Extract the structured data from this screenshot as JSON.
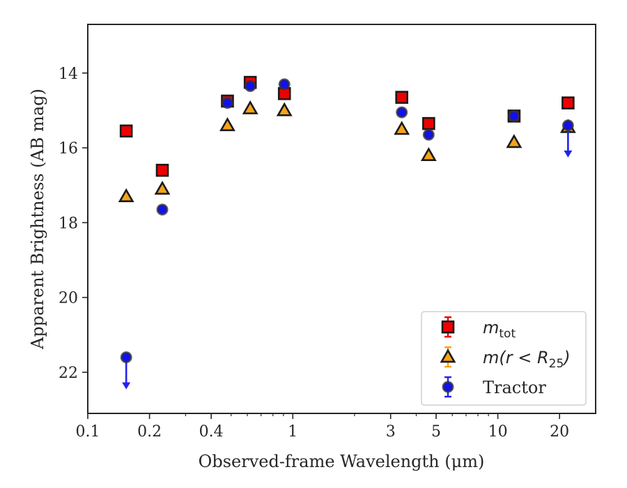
{
  "chart_data": {
    "type": "scatter",
    "xlabel": "Observed-frame Wavelength (μm)",
    "ylabel": "Apparent Brightness (AB mag)",
    "x_scale": "log",
    "xlim": [
      0.1,
      30
    ],
    "ylim": [
      23.1,
      12.7
    ],
    "y_inverted": true,
    "x_ticks": [
      {
        "value": 0.1,
        "label": "0.1"
      },
      {
        "value": 0.2,
        "label": "0.2"
      },
      {
        "value": 0.4,
        "label": "0.4"
      },
      {
        "value": 1,
        "label": "1"
      },
      {
        "value": 3,
        "label": "3"
      },
      {
        "value": 5,
        "label": "5"
      },
      {
        "value": 10,
        "label": "10"
      },
      {
        "value": 20,
        "label": "20"
      }
    ],
    "y_ticks": [
      {
        "value": 14,
        "label": "14"
      },
      {
        "value": 16,
        "label": "16"
      },
      {
        "value": 18,
        "label": "18"
      },
      {
        "value": 20,
        "label": "20"
      },
      {
        "value": 22,
        "label": "22"
      }
    ],
    "grid": false,
    "legend": {
      "placement": "lower-right"
    },
    "series": [
      {
        "name": "m_tot",
        "legend_main": "m",
        "legend_sub": "tot",
        "marker": "square",
        "fill": "#ee0000",
        "errorbar_color": "#ee0000",
        "points": [
          {
            "x": 0.154,
            "y": 15.55
          },
          {
            "x": 0.231,
            "y": 16.6
          },
          {
            "x": 0.48,
            "y": 14.75
          },
          {
            "x": 0.62,
            "y": 14.25
          },
          {
            "x": 0.91,
            "y": 14.55
          },
          {
            "x": 3.4,
            "y": 14.65
          },
          {
            "x": 4.6,
            "y": 15.35
          },
          {
            "x": 12.0,
            "y": 15.15
          },
          {
            "x": 22.0,
            "y": 14.8
          }
        ]
      },
      {
        "name": "m(r < R_25)",
        "legend_main": "m(r < R",
        "legend_sub": "25",
        "legend_tail": ")",
        "marker": "triangle",
        "fill": "#f5a31a",
        "errorbar_color": "#f5a31a",
        "points": [
          {
            "x": 0.154,
            "y": 17.3
          },
          {
            "x": 0.231,
            "y": 17.1
          },
          {
            "x": 0.48,
            "y": 15.4
          },
          {
            "x": 0.62,
            "y": 14.95
          },
          {
            "x": 0.91,
            "y": 15.0
          },
          {
            "x": 3.4,
            "y": 15.5
          },
          {
            "x": 4.6,
            "y": 16.2
          },
          {
            "x": 12.0,
            "y": 15.85
          },
          {
            "x": 22.0,
            "y": 15.45
          }
        ]
      },
      {
        "name": "Tractor",
        "legend_main": "Tractor",
        "marker": "circle",
        "fill": "#1111ee",
        "errorbar_color": "#2222ee",
        "points": [
          {
            "x": 0.154,
            "y": 21.6,
            "upper_limit": true
          },
          {
            "x": 0.231,
            "y": 17.65
          },
          {
            "x": 0.48,
            "y": 14.8
          },
          {
            "x": 0.62,
            "y": 14.35
          },
          {
            "x": 0.91,
            "y": 14.3
          },
          {
            "x": 3.4,
            "y": 15.05
          },
          {
            "x": 4.6,
            "y": 15.65
          },
          {
            "x": 12.0,
            "y": 15.15
          },
          {
            "x": 22.0,
            "y": 15.4,
            "upper_limit": true
          }
        ]
      }
    ]
  }
}
